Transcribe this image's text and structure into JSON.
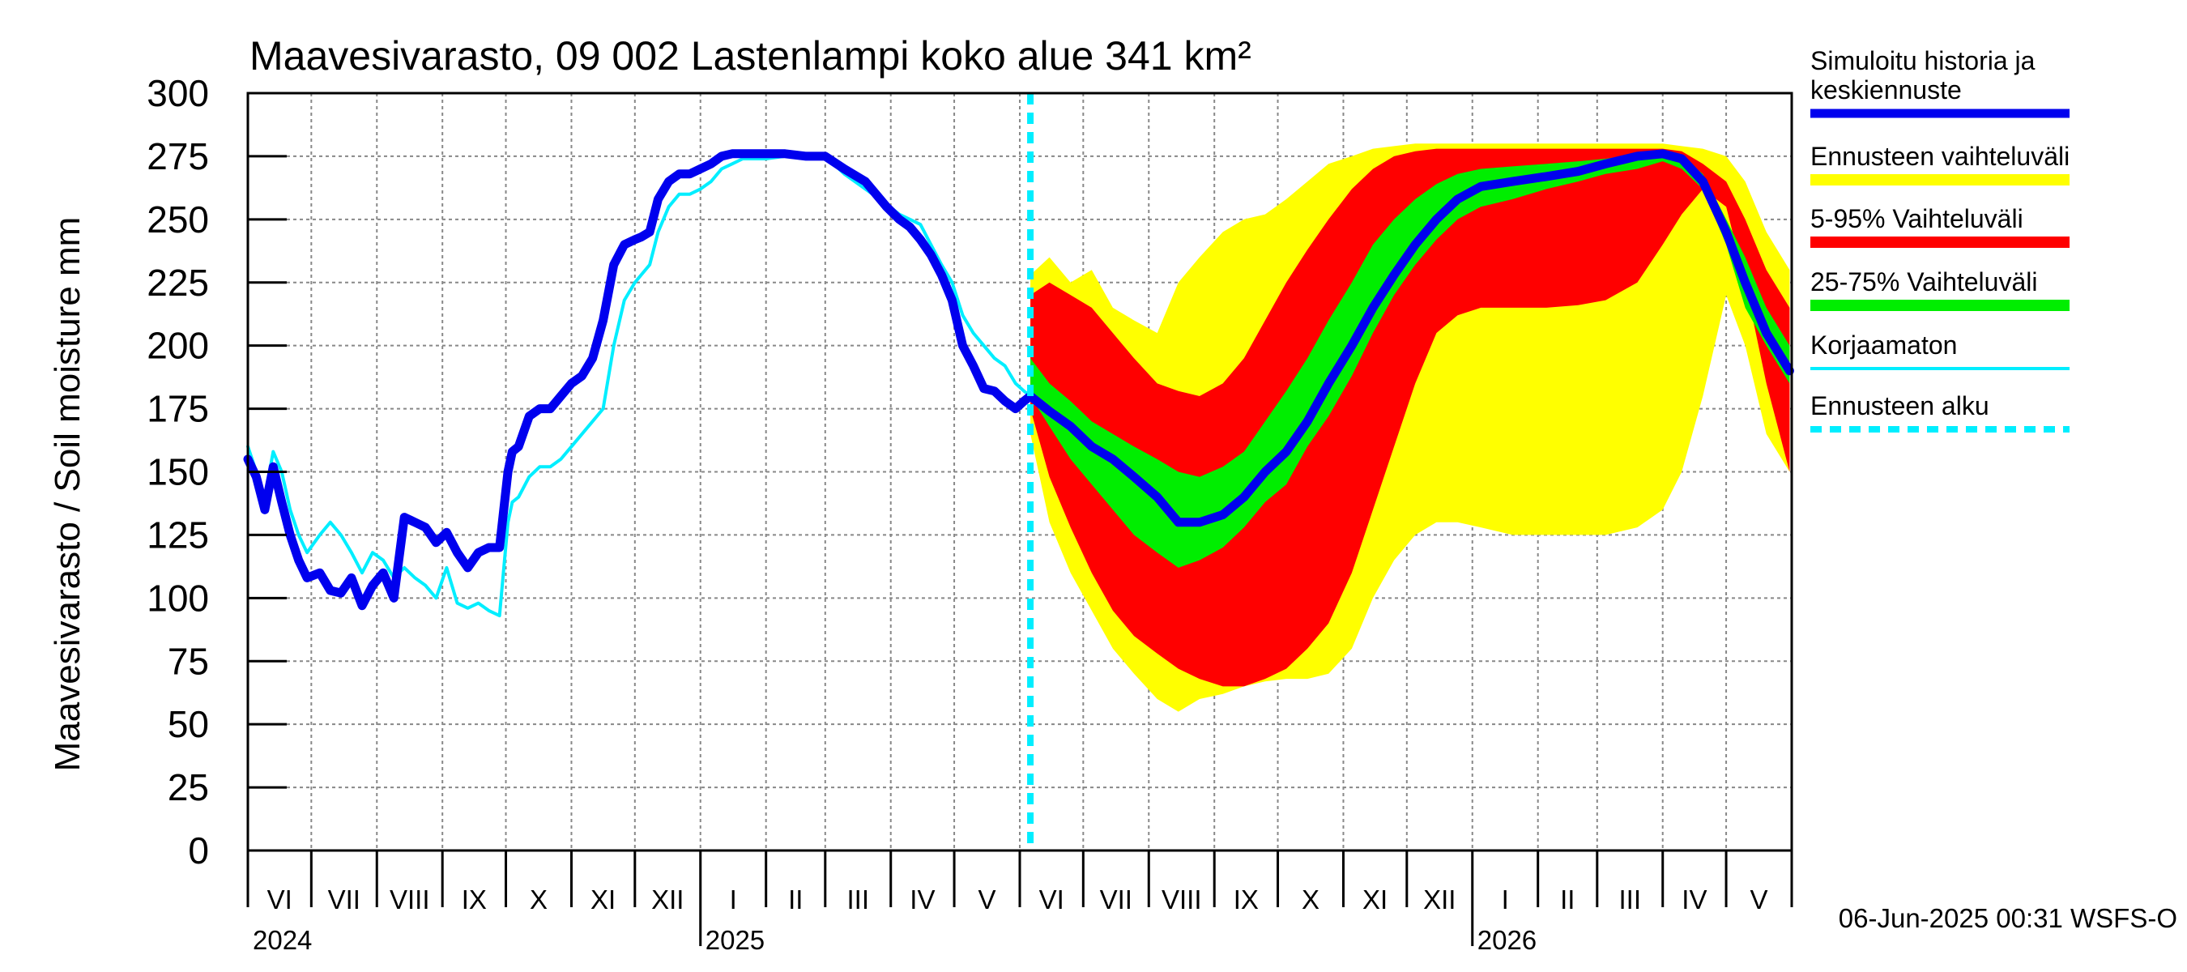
{
  "chart_data": {
    "type": "area",
    "title": "Maavesivarasto, 09 002 Lastenlampi koko alue 341 km²",
    "ylabel": "Maavesivarasto / Soil moisture   mm",
    "ylim": [
      0,
      300
    ],
    "yticks": [
      0,
      25,
      50,
      75,
      100,
      125,
      150,
      175,
      200,
      225,
      250,
      275,
      300
    ],
    "xlim": [
      "2024-06-01",
      "2026-06-01"
    ],
    "month_labels": [
      "VI",
      "VII",
      "VIII",
      "IX",
      "X",
      "XI",
      "XII",
      "I",
      "II",
      "III",
      "IV",
      "V",
      "VI",
      "VII",
      "VIII",
      "IX",
      "X",
      "XI",
      "XII",
      "I",
      "II",
      "III",
      "IV",
      "V"
    ],
    "year_labels": [
      {
        "label": "2024",
        "date": "2024-06-01"
      },
      {
        "label": "2025",
        "date": "2025-01-01"
      },
      {
        "label": "2026",
        "date": "2026-01-01"
      }
    ],
    "forecast_start": "2025-06-06",
    "footer": "06-Jun-2025 00:31 WSFS-O",
    "grid": true,
    "legend_position": "right",
    "colors": {
      "simulated": "#0000ee",
      "range_full": "#ffff00",
      "range_5_95": "#ff0000",
      "range_25_75": "#00ee00",
      "uncorrected": "#00eeff",
      "forecast_start": "#00eeff"
    },
    "legend": [
      {
        "key": "simulated",
        "label": "Simuloitu historia ja keskiennuste",
        "lines": [
          "Simuloitu historia ja",
          "keskiennuste"
        ]
      },
      {
        "key": "range_full",
        "label": "Ennusteen vaihteluväli",
        "lines": [
          "Ennusteen vaihteluväli"
        ]
      },
      {
        "key": "range_5_95",
        "label": "5-95% Vaihteluväli",
        "lines": [
          "5-95% Vaihteluväli"
        ]
      },
      {
        "key": "range_25_75",
        "label": "25-75% Vaihteluväli",
        "lines": [
          "25-75% Vaihteluväli"
        ]
      },
      {
        "key": "uncorrected",
        "label": "Korjaamaton",
        "lines": [
          "Korjaamaton"
        ]
      },
      {
        "key": "forecast_start",
        "label": "Ennusteen alku",
        "lines": [
          "Ennusteen alku"
        ]
      }
    ],
    "series": [
      {
        "key": "simulated",
        "x": [
          "2024-06-01",
          "2024-06-05",
          "2024-06-09",
          "2024-06-13",
          "2024-06-17",
          "2024-06-21",
          "2024-06-25",
          "2024-06-29",
          "2024-07-05",
          "2024-07-10",
          "2024-07-15",
          "2024-07-20",
          "2024-07-25",
          "2024-07-30",
          "2024-08-04",
          "2024-08-09",
          "2024-08-14",
          "2024-08-19",
          "2024-08-24",
          "2024-08-29",
          "2024-09-03",
          "2024-09-08",
          "2024-09-13",
          "2024-09-18",
          "2024-09-23",
          "2024-09-28",
          "2024-10-02",
          "2024-10-04",
          "2024-10-07",
          "2024-10-12",
          "2024-10-17",
          "2024-10-22",
          "2024-10-27",
          "2024-11-01",
          "2024-11-06",
          "2024-11-11",
          "2024-11-16",
          "2024-11-21",
          "2024-11-26",
          "2024-12-01",
          "2024-12-04",
          "2024-12-08",
          "2024-12-12",
          "2024-12-17",
          "2024-12-22",
          "2024-12-27",
          "2025-01-01",
          "2025-01-06",
          "2025-01-11",
          "2025-01-16",
          "2025-01-21",
          "2025-01-26",
          "2025-02-01",
          "2025-02-10",
          "2025-02-20",
          "2025-03-01",
          "2025-03-10",
          "2025-03-20",
          "2025-03-30",
          "2025-04-05",
          "2025-04-10",
          "2025-04-15",
          "2025-04-20",
          "2025-04-25",
          "2025-04-30",
          "2025-05-05",
          "2025-05-10",
          "2025-05-15",
          "2025-05-20",
          "2025-05-25",
          "2025-05-30",
          "2025-06-03",
          "2025-06-06"
        ],
        "y": [
          155,
          148,
          135,
          152,
          138,
          125,
          115,
          108,
          110,
          103,
          102,
          108,
          97,
          105,
          110,
          100,
          132,
          130,
          128,
          122,
          126,
          118,
          112,
          118,
          120,
          120,
          150,
          158,
          160,
          172,
          175,
          175,
          180,
          185,
          188,
          195,
          210,
          232,
          240,
          242,
          243,
          245,
          258,
          265,
          268,
          268,
          270,
          272,
          275,
          276,
          276,
          276,
          276,
          276,
          275,
          275,
          270,
          265,
          255,
          250,
          247,
          242,
          236,
          228,
          218,
          200,
          192,
          183,
          182,
          178,
          175,
          178,
          180
        ]
      },
      {
        "key": "simulated_forecast",
        "x": [
          "2025-06-06",
          "2025-06-15",
          "2025-06-25",
          "2025-07-05",
          "2025-07-15",
          "2025-07-25",
          "2025-08-05",
          "2025-08-15",
          "2025-08-25",
          "2025-09-05",
          "2025-09-15",
          "2025-09-25",
          "2025-10-05",
          "2025-10-15",
          "2025-10-25",
          "2025-11-05",
          "2025-11-15",
          "2025-11-25",
          "2025-12-05",
          "2025-12-15",
          "2025-12-25",
          "2026-01-05",
          "2026-01-20",
          "2026-02-05",
          "2026-02-20",
          "2026-03-05",
          "2026-03-20",
          "2026-04-01",
          "2026-04-10",
          "2026-04-20",
          "2026-05-01",
          "2026-05-10",
          "2026-05-20",
          "2026-05-31"
        ],
        "y": [
          180,
          174,
          168,
          160,
          155,
          148,
          140,
          130,
          130,
          133,
          140,
          150,
          158,
          170,
          185,
          200,
          215,
          228,
          240,
          250,
          258,
          263,
          265,
          267,
          269,
          272,
          275,
          276,
          274,
          265,
          245,
          225,
          205,
          190
        ]
      },
      {
        "key": "uncorrected",
        "x": [
          "2024-06-01",
          "2024-06-05",
          "2024-06-09",
          "2024-06-13",
          "2024-06-17",
          "2024-06-21",
          "2024-06-25",
          "2024-06-29",
          "2024-07-05",
          "2024-07-10",
          "2024-07-15",
          "2024-07-20",
          "2024-07-25",
          "2024-07-30",
          "2024-08-04",
          "2024-08-09",
          "2024-08-14",
          "2024-08-19",
          "2024-08-24",
          "2024-08-29",
          "2024-09-03",
          "2024-09-08",
          "2024-09-13",
          "2024-09-18",
          "2024-09-23",
          "2024-09-28",
          "2024-10-02",
          "2024-10-04",
          "2024-10-07",
          "2024-10-12",
          "2024-10-17",
          "2024-10-22",
          "2024-10-27",
          "2024-11-01",
          "2024-11-06",
          "2024-11-11",
          "2024-11-16",
          "2024-11-21",
          "2024-11-26",
          "2024-12-01",
          "2024-12-04",
          "2024-12-08",
          "2024-12-12",
          "2024-12-17",
          "2024-12-22",
          "2024-12-27",
          "2025-01-01",
          "2025-01-06",
          "2025-01-11",
          "2025-01-16",
          "2025-01-21",
          "2025-01-26",
          "2025-02-01",
          "2025-02-10",
          "2025-02-20",
          "2025-03-01",
          "2025-03-10",
          "2025-03-20",
          "2025-03-30",
          "2025-04-05",
          "2025-04-10",
          "2025-04-15",
          "2025-04-20",
          "2025-04-25",
          "2025-04-30",
          "2025-05-05",
          "2025-05-10",
          "2025-05-15",
          "2025-05-20",
          "2025-05-25",
          "2025-05-30",
          "2025-06-03",
          "2025-06-06"
        ],
        "y": [
          160,
          150,
          140,
          158,
          150,
          135,
          125,
          118,
          125,
          130,
          125,
          118,
          110,
          118,
          115,
          108,
          112,
          108,
          105,
          100,
          112,
          98,
          96,
          98,
          95,
          93,
          130,
          138,
          140,
          148,
          152,
          152,
          155,
          160,
          165,
          170,
          175,
          200,
          218,
          225,
          228,
          232,
          245,
          255,
          260,
          260,
          262,
          265,
          270,
          272,
          274,
          274,
          274,
          275,
          275,
          275,
          268,
          262,
          256,
          252,
          250,
          248,
          240,
          232,
          225,
          212,
          205,
          200,
          195,
          192,
          185,
          182,
          180
        ]
      }
    ],
    "bands": {
      "x": [
        "2025-06-06",
        "2025-06-15",
        "2025-06-25",
        "2025-07-05",
        "2025-07-15",
        "2025-07-25",
        "2025-08-05",
        "2025-08-15",
        "2025-08-25",
        "2025-09-05",
        "2025-09-15",
        "2025-09-25",
        "2025-10-05",
        "2025-10-15",
        "2025-10-25",
        "2025-11-05",
        "2025-11-15",
        "2025-11-25",
        "2025-12-05",
        "2025-12-15",
        "2025-12-25",
        "2026-01-05",
        "2026-01-20",
        "2026-02-05",
        "2026-02-20",
        "2026-03-05",
        "2026-03-20",
        "2026-04-01",
        "2026-04-10",
        "2026-04-20",
        "2026-05-01",
        "2026-05-10",
        "2026-05-20",
        "2026-05-31"
      ],
      "full_low": [
        165,
        130,
        110,
        95,
        80,
        70,
        60,
        55,
        60,
        62,
        65,
        67,
        68,
        68,
        70,
        80,
        100,
        115,
        125,
        130,
        130,
        128,
        125,
        125,
        125,
        125,
        128,
        135,
        150,
        180,
        220,
        200,
        165,
        150
      ],
      "full_high": [
        228,
        235,
        225,
        230,
        215,
        210,
        205,
        225,
        235,
        245,
        250,
        252,
        258,
        265,
        272,
        275,
        278,
        279,
        280,
        280,
        280,
        280,
        280,
        280,
        280,
        280,
        280,
        280,
        279,
        278,
        275,
        265,
        245,
        230
      ],
      "p5": [
        175,
        148,
        128,
        110,
        95,
        85,
        78,
        72,
        68,
        65,
        65,
        68,
        72,
        80,
        90,
        110,
        135,
        160,
        185,
        205,
        212,
        215,
        215,
        215,
        216,
        218,
        225,
        240,
        252,
        262,
        255,
        225,
        185,
        150
      ],
      "p95": [
        220,
        225,
        220,
        215,
        205,
        195,
        185,
        182,
        180,
        185,
        195,
        210,
        225,
        238,
        250,
        262,
        270,
        275,
        277,
        278,
        278,
        278,
        278,
        278,
        278,
        278,
        278,
        278,
        277,
        272,
        265,
        250,
        230,
        215
      ],
      "p25": [
        180,
        168,
        155,
        145,
        135,
        125,
        118,
        112,
        115,
        120,
        128,
        138,
        145,
        160,
        172,
        188,
        205,
        220,
        232,
        242,
        250,
        255,
        258,
        262,
        265,
        268,
        270,
        273,
        270,
        262,
        240,
        215,
        200,
        185
      ],
      "p75": [
        195,
        185,
        178,
        170,
        165,
        160,
        155,
        150,
        148,
        152,
        158,
        170,
        182,
        195,
        210,
        225,
        240,
        250,
        258,
        264,
        268,
        270,
        271,
        272,
        273,
        274,
        276,
        277,
        275,
        268,
        250,
        235,
        215,
        200
      ]
    }
  }
}
